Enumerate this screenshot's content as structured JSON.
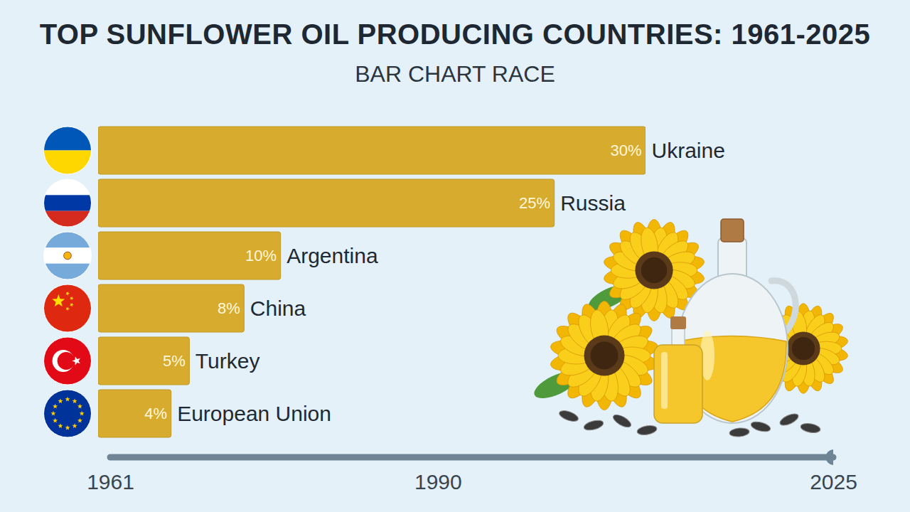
{
  "chart_data": [
    {
      "type": "bar",
      "title": "TOP SUNFLOWER OIL PRODUCING COUNTRIES: 1961-2025",
      "subtitle": "BAR CHART RACE",
      "orientation": "horizontal",
      "categories": [
        "Ukraine",
        "Russia",
        "Argentina",
        "China",
        "Turkey",
        "European Union"
      ],
      "values": [
        30,
        25,
        10,
        8,
        5,
        4
      ],
      "value_labels": [
        "30%",
        "25%",
        "10%",
        "8%",
        "5%",
        "4%"
      ],
      "data_labels": true,
      "color": "#d6ab2e",
      "xlim": [
        0,
        30
      ],
      "tick_labels": false,
      "grid": false
    },
    {
      "type": "timeline",
      "xlim": [
        1961,
        2025
      ],
      "xticks": [
        1961,
        1990,
        2025
      ],
      "values": [
        2025
      ],
      "color": "#6f8595"
    }
  ]
}
